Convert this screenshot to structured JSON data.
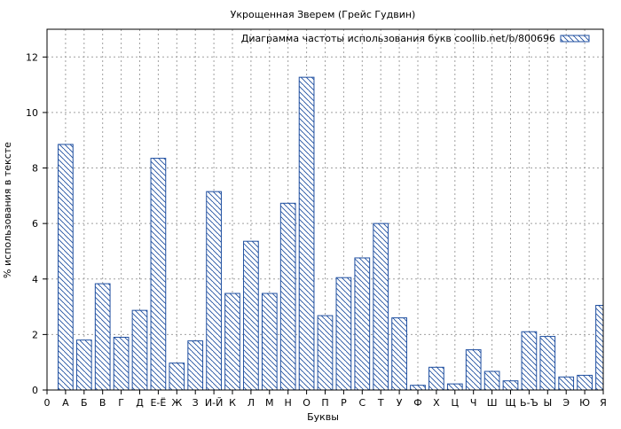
{
  "chart_data": {
    "type": "bar",
    "title": "Укрощенная Зверем (Грейс Гудвин)",
    "xlabel": "Буквы",
    "ylabel": "% использования в тексте",
    "ylim": [
      0,
      13
    ],
    "yticks": [
      0,
      2,
      4,
      6,
      8,
      10,
      12
    ],
    "grid": true,
    "legend_position": "top-right",
    "x_labels": [
      "0",
      "А",
      "Б",
      "В",
      "Г",
      "Д",
      "Е-Ё",
      "Ж",
      "З",
      "И-Й",
      "К",
      "Л",
      "М",
      "Н",
      "О",
      "П",
      "Р",
      "С",
      "Т",
      "У",
      "Ф",
      "Х",
      "Ц",
      "Ч",
      "Ш",
      "Щ",
      "Ь-Ъ",
      "Ы",
      "Э",
      "Ю",
      "Я"
    ],
    "categories": [
      "А",
      "Б",
      "В",
      "Г",
      "Д",
      "Е-Ё",
      "Ж",
      "З",
      "И-Й",
      "К",
      "Л",
      "М",
      "Н",
      "О",
      "П",
      "Р",
      "С",
      "Т",
      "У",
      "Ф",
      "Х",
      "Ц",
      "Ч",
      "Ш",
      "Щ",
      "Ь-Ъ",
      "Ы",
      "Э",
      "Ю",
      "Я"
    ],
    "series": [
      {
        "name": "Диаграмма частоты использования букв coollib.net/b/800696",
        "values": [
          8.85,
          1.8,
          3.83,
          1.9,
          2.87,
          8.35,
          0.97,
          1.77,
          7.15,
          3.48,
          5.36,
          3.48,
          6.73,
          11.27,
          2.68,
          4.05,
          4.76,
          6.0,
          2.6,
          0.17,
          0.82,
          0.22,
          1.45,
          0.67,
          0.33,
          2.1,
          1.93,
          0.47,
          0.53,
          3.05
        ]
      }
    ],
    "colors": {
      "bar_stroke": "#1f4fa0",
      "hatch": "#1f4fa0",
      "grid": "#a0a0a0",
      "axis": "#000000"
    }
  }
}
